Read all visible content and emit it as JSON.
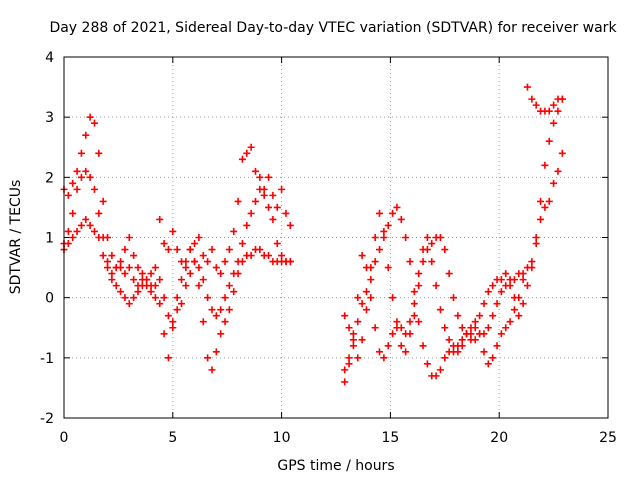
{
  "chart_data": {
    "type": "scatter",
    "title": "Day 288 of 2021, Sidereal Day-to-day VTEC variation (SDTVAR) for receiver wark",
    "xlabel": "GPS time / hours",
    "ylabel": "SDTVAR / TECUs",
    "xlim": [
      0,
      25
    ],
    "ylim": [
      -2,
      4
    ],
    "xticks": [
      0,
      5,
      10,
      15,
      20,
      25
    ],
    "yticks": [
      -2,
      -1,
      0,
      1,
      2,
      3,
      4
    ],
    "grid": true,
    "marker": "+",
    "color": "#ff0000",
    "series": [
      {
        "x": [
          0.0,
          0.2,
          0.4,
          0.6,
          0.8,
          1.0,
          1.2,
          1.4,
          1.6,
          1.8,
          2.0,
          2.2,
          2.4,
          2.6,
          2.8,
          3.0,
          3.2,
          3.4,
          3.6,
          3.8,
          4.0,
          4.2,
          4.4,
          4.6,
          4.8,
          5.0,
          5.2,
          5.4,
          5.6,
          5.8,
          6.0,
          6.2,
          6.4,
          6.6,
          6.8,
          7.0,
          7.2,
          7.4,
          7.6,
          7.8,
          8.0,
          8.2,
          8.4,
          8.6,
          8.8,
          9.0,
          9.2,
          9.4,
          9.6,
          9.8,
          10.0,
          10.2,
          10.4
        ],
        "y": [
          1.8,
          1.7,
          1.9,
          2.1,
          2.4,
          2.7,
          3.0,
          2.9,
          2.4,
          1.6,
          1.0,
          0.7,
          0.5,
          0.5,
          0.4,
          0.5,
          0.3,
          0.2,
          0.4,
          0.3,
          0.2,
          0.2,
          1.3,
          0.9,
          0.8,
          1.1,
          0.8,
          0.6,
          0.5,
          0.8,
          0.9,
          1.0,
          0.7,
          0.6,
          0.8,
          0.5,
          0.4,
          0.6,
          0.8,
          1.1,
          1.6,
          2.3,
          2.4,
          2.5,
          2.1,
          2.0,
          1.8,
          2.0,
          1.7,
          1.5,
          1.8,
          1.4,
          1.2
        ]
      },
      {
        "x": [
          0.0,
          0.2,
          0.4,
          0.6,
          0.8,
          1.0,
          1.2,
          1.4,
          1.6,
          1.8,
          2.0,
          2.2,
          2.4,
          2.6,
          2.8,
          3.0,
          3.2,
          3.4,
          3.6,
          3.8,
          4.0,
          4.2,
          4.4,
          4.6,
          4.8,
          5.0,
          5.2,
          5.4,
          5.6,
          5.8,
          6.0,
          6.2,
          6.4,
          6.6,
          6.8,
          7.0,
          7.2,
          7.4,
          7.6,
          7.8,
          8.0,
          8.2,
          8.4,
          8.6,
          8.8,
          9.0,
          9.2,
          9.4,
          9.6,
          9.8,
          10.0,
          10.2,
          10.4
        ],
        "y": [
          0.9,
          1.1,
          1.4,
          1.8,
          2.0,
          2.1,
          2.0,
          1.8,
          1.4,
          1.0,
          0.6,
          0.3,
          0.2,
          0.1,
          0.0,
          -0.1,
          0.0,
          0.1,
          0.2,
          0.3,
          0.4,
          0.5,
          0.3,
          0.0,
          -0.3,
          -0.4,
          -0.2,
          -0.1,
          0.2,
          0.4,
          0.6,
          0.5,
          0.3,
          0.0,
          -0.2,
          -0.3,
          -0.2,
          0.0,
          0.2,
          0.4,
          0.6,
          0.9,
          1.2,
          1.4,
          1.6,
          1.8,
          1.7,
          1.5,
          1.3,
          0.9,
          0.7,
          0.6,
          0.6
        ]
      },
      {
        "x": [
          0.0,
          0.2,
          0.4,
          0.6,
          0.8,
          1.0,
          1.2,
          1.4,
          1.6,
          1.8,
          2.0,
          2.2,
          2.4,
          2.6,
          2.8,
          3.0,
          3.2,
          3.4,
          3.6,
          3.8,
          4.0,
          4.2,
          4.4,
          4.6,
          4.8,
          5.0,
          5.2,
          5.4,
          5.6,
          5.8,
          6.0,
          6.2,
          6.4,
          6.6,
          6.8,
          7.0,
          7.2,
          7.4,
          7.6,
          7.8,
          8.0,
          8.2,
          8.4,
          8.6,
          8.8,
          9.0,
          9.2,
          9.4,
          9.6,
          9.8,
          10.0,
          10.2,
          10.4
        ],
        "y": [
          0.8,
          0.9,
          1.0,
          1.1,
          1.2,
          1.3,
          1.2,
          1.1,
          1.0,
          0.7,
          0.5,
          0.4,
          0.5,
          0.6,
          0.8,
          1.0,
          0.7,
          0.5,
          0.3,
          0.2,
          0.1,
          0.0,
          -0.1,
          -0.6,
          -1.0,
          -0.5,
          0.0,
          0.3,
          0.6,
          0.8,
          0.6,
          0.2,
          -0.4,
          -1.0,
          -1.2,
          -0.9,
          -0.6,
          -0.4,
          -0.2,
          0.1,
          0.4,
          0.6,
          0.7,
          0.7,
          0.8,
          0.8,
          0.7,
          0.7,
          0.6,
          0.6,
          0.6,
          0.6,
          0.6
        ]
      },
      {
        "x": [
          12.9,
          13.1,
          13.3,
          13.5,
          13.7,
          13.9,
          14.1,
          14.3,
          14.5,
          14.7,
          14.9,
          15.1,
          15.3,
          15.5,
          15.7,
          15.9,
          16.1,
          16.3,
          16.5,
          16.7,
          16.9,
          17.1,
          17.3,
          17.5,
          17.7,
          17.9,
          18.1,
          18.3,
          18.5,
          18.7,
          18.9,
          19.1,
          19.3,
          19.5,
          19.7,
          19.9,
          20.1,
          20.3,
          20.5,
          20.7,
          20.9,
          21.1,
          21.3,
          21.5,
          21.7,
          21.9,
          22.1,
          22.3,
          22.5,
          22.7,
          22.9
        ],
        "y": [
          -0.3,
          -0.5,
          -0.8,
          -1.0,
          -0.7,
          -0.2,
          0.5,
          1.0,
          1.4,
          1.1,
          0.5,
          0.0,
          -0.5,
          -0.8,
          -0.9,
          -0.6,
          -0.3,
          0.2,
          0.6,
          0.8,
          0.9,
          1.0,
          1.0,
          0.8,
          0.4,
          0.0,
          -0.3,
          -0.5,
          -0.6,
          -0.7,
          -0.7,
          -0.6,
          -0.6,
          -0.5,
          -0.3,
          -0.1,
          0.1,
          0.2,
          0.3,
          0.3,
          0.4,
          0.4,
          0.5,
          0.6,
          0.9,
          1.3,
          1.5,
          1.6,
          1.9,
          2.1,
          2.4
        ]
      },
      {
        "x": [
          12.9,
          13.1,
          13.3,
          13.5,
          13.7,
          13.9,
          14.1,
          14.3,
          14.5,
          14.7,
          14.9,
          15.1,
          15.3,
          15.5,
          15.7,
          15.9,
          16.1,
          16.3,
          16.5,
          16.7,
          16.9,
          17.1,
          17.3,
          17.5,
          17.7,
          17.9,
          18.1,
          18.3,
          18.5,
          18.7,
          18.9,
          19.1,
          19.3,
          19.5,
          19.7,
          19.9,
          20.1,
          20.3,
          20.5,
          20.7,
          20.9,
          21.1,
          21.3,
          21.5,
          21.7,
          21.9,
          22.1,
          22.3,
          22.5,
          22.7,
          22.9
        ],
        "y": [
          -1.2,
          -1.0,
          -0.7,
          -0.4,
          -0.1,
          0.1,
          0.3,
          0.6,
          0.8,
          1.0,
          1.2,
          1.4,
          1.5,
          1.3,
          1.0,
          0.6,
          0.1,
          -0.4,
          -0.8,
          -1.1,
          -1.3,
          -1.3,
          -1.2,
          -1.0,
          -0.9,
          -0.8,
          -0.8,
          -0.7,
          -0.6,
          -0.6,
          -0.5,
          -0.3,
          -0.1,
          0.1,
          0.2,
          0.3,
          0.3,
          0.4,
          0.2,
          0.0,
          -0.3,
          -0.1,
          0.2,
          0.5,
          1.0,
          1.6,
          2.2,
          2.6,
          2.9,
          3.1,
          3.3
        ]
      },
      {
        "x": [
          12.9,
          13.1,
          13.3,
          13.5,
          13.7,
          13.9,
          14.1,
          14.3,
          14.5,
          14.7,
          14.9,
          15.1,
          15.3,
          15.5,
          15.7,
          15.9,
          16.1,
          16.3,
          16.5,
          16.7,
          16.9,
          17.1,
          17.3,
          17.5,
          17.7,
          17.9,
          18.1,
          18.3,
          18.5,
          18.7,
          18.9,
          19.1,
          19.3,
          19.5,
          19.7,
          19.9,
          20.1,
          20.3,
          20.5,
          20.7,
          20.9,
          21.1,
          21.3,
          21.5,
          21.7,
          21.9,
          22.1,
          22.3,
          22.5,
          22.7,
          22.9
        ],
        "y": [
          -1.4,
          -1.1,
          -0.6,
          0.0,
          0.7,
          0.5,
          0.0,
          -0.5,
          -0.9,
          -1.0,
          -0.8,
          -0.6,
          -0.4,
          -0.5,
          -0.6,
          -0.4,
          -0.1,
          0.4,
          0.8,
          1.0,
          0.6,
          0.2,
          -0.2,
          -0.5,
          -0.7,
          -0.9,
          -0.9,
          -0.8,
          -0.6,
          -0.5,
          -0.4,
          -0.6,
          -0.9,
          -1.1,
          -1.0,
          -0.8,
          -0.6,
          -0.5,
          -0.4,
          -0.2,
          0.0,
          0.3,
          3.5,
          3.3,
          3.2,
          3.1,
          3.1,
          3.1,
          3.2,
          3.3,
          3.3
        ]
      }
    ]
  }
}
